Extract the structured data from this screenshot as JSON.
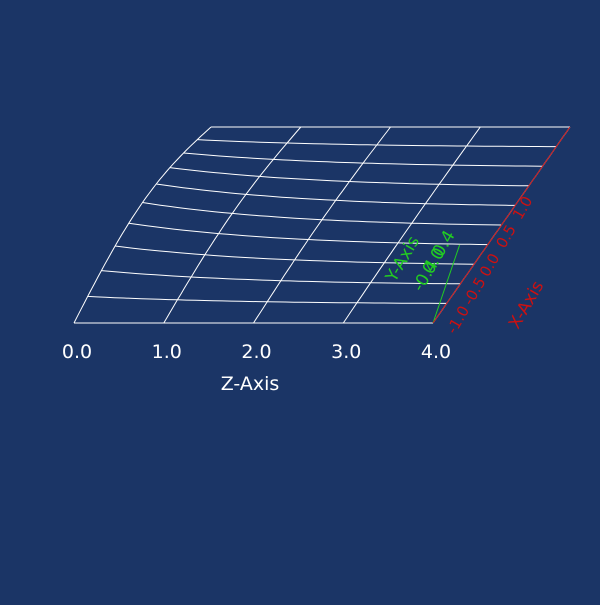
{
  "colors": {
    "background": "#1b3566",
    "mesh": "#ffffff",
    "z_axis": "#ffffff",
    "y_axis": "#22cc22",
    "x_axis": "#cc1111"
  },
  "chart_data": {
    "type": "surface-wireframe-3d",
    "title": "",
    "z_axis": {
      "label": "Z-Axis",
      "ticks": [
        "0.0",
        "1.0",
        "2.0",
        "3.0",
        "4.0"
      ],
      "range": [
        0,
        4
      ]
    },
    "y_axis": {
      "label": "Y-Axis",
      "ticks": [
        "-0.4",
        "0.0",
        "0.4"
      ],
      "range": [
        -0.4,
        0.4
      ]
    },
    "x_axis": {
      "label": "X-Axis",
      "ticks": [
        "-1.0",
        "-0.5",
        "0.0",
        "0.5",
        "1.0"
      ],
      "range": [
        -1,
        1
      ]
    },
    "grid": true
  }
}
